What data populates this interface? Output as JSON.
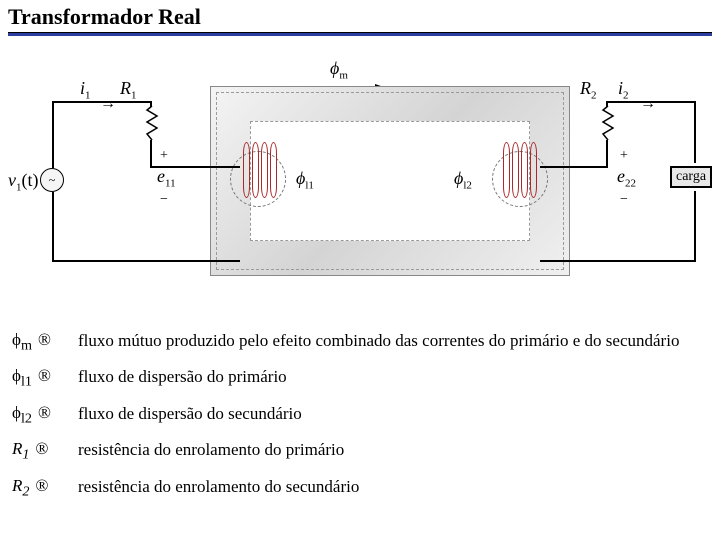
{
  "title": "Transformador Real",
  "labels": {
    "i1": "i",
    "i1_sub": "1",
    "i2": "i",
    "i2_sub": "2",
    "R1": "R",
    "R1_sub": "1",
    "R2": "R",
    "R2_sub": "2",
    "v1t": "v",
    "v1t_sub": "1",
    "v1t_paren": "(t)",
    "e11": "e",
    "e11_sub": "11",
    "e22": "e",
    "e22_sub": "22",
    "phi_m_up": "ϕ",
    "phi_m_up_sub": "m",
    "phi_l1": "ϕ",
    "phi_l1_sub": "l1",
    "phi_l2": "ϕ",
    "phi_l2_sub": "l2",
    "plus": "+",
    "minus": "−",
    "carga": "carga"
  },
  "definitions": [
    {
      "sym": "ϕ",
      "sub": "m",
      "text": "fluxo mútuo produzido pelo efeito combinado das correntes do primário e do secundário"
    },
    {
      "sym": "ϕ",
      "sub": "l1",
      "text": "fluxo de dispersão do primário"
    },
    {
      "sym": "ϕ",
      "sub": "l2",
      "text": "fluxo de dispersão do secundário"
    },
    {
      "sym": "R",
      "sub": "1",
      "italic": true,
      "text": "resistência do enrolamento do primário"
    },
    {
      "sym": "R",
      "sub": "2",
      "italic": true,
      "text": "resistência do enrolamento do secundário"
    }
  ],
  "arrow_glyph": "®",
  "colors": {
    "accent": "#2c3e9e",
    "coil": "#aa2a2a",
    "core_light": "#f4f4f4",
    "core_dark": "#d4d4d4"
  }
}
